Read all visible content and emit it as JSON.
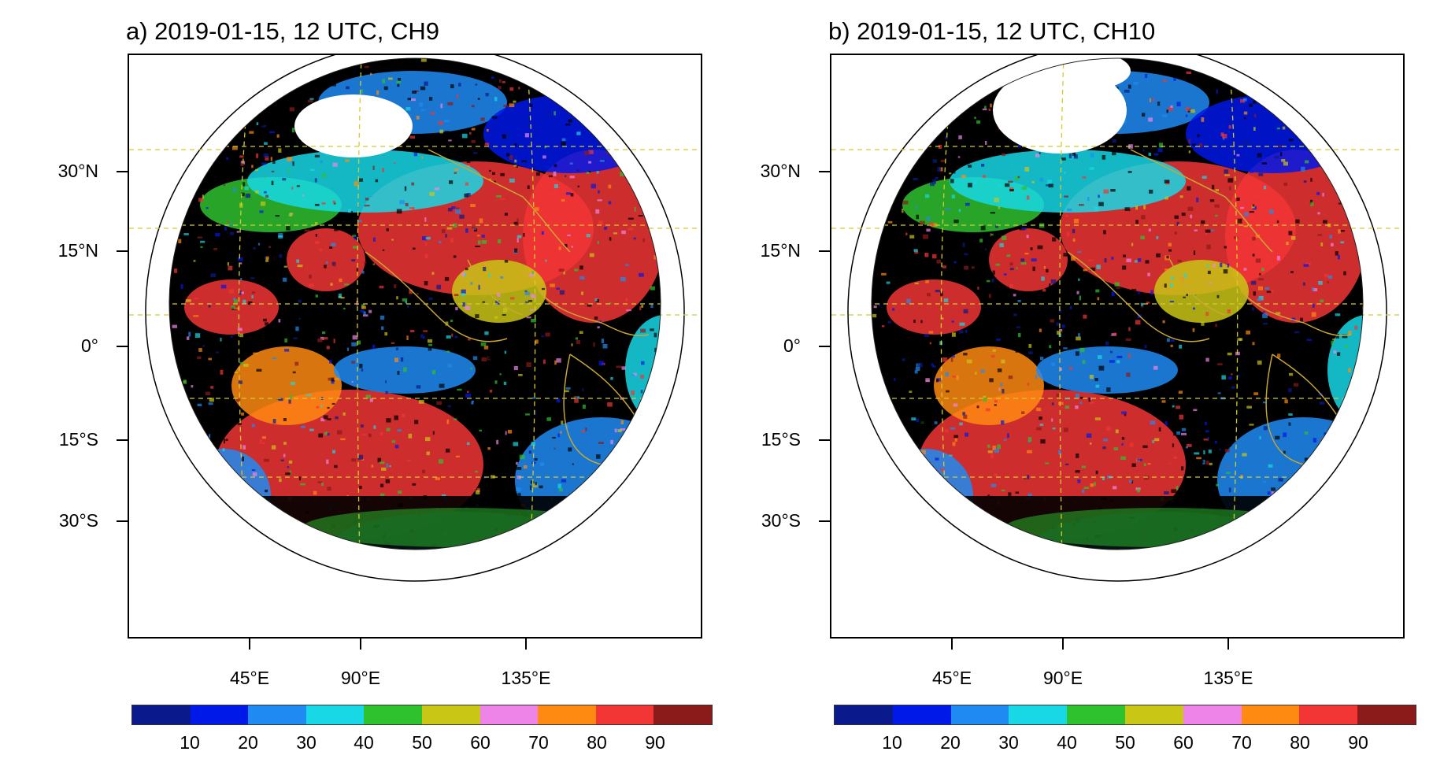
{
  "panels": [
    {
      "title": "a) 2019-01-15, 12 UTC, CH9",
      "lat_labels": [
        "30°N",
        "15°N",
        "0°",
        "15°S",
        "30°S"
      ],
      "lon_labels": [
        "45°E",
        "90°E",
        "135°E"
      ],
      "colorbar_labels": [
        "10",
        "20",
        "30",
        "40",
        "50",
        "60",
        "70",
        "80",
        "90"
      ]
    },
    {
      "title": "b) 2019-01-15, 12 UTC, CH10",
      "lat_labels": [
        "30°N",
        "15°N",
        "0°",
        "15°S",
        "30°S"
      ],
      "lon_labels": [
        "45°E",
        "90°E",
        "135°E"
      ],
      "colorbar_labels": [
        "10",
        "20",
        "30",
        "40",
        "50",
        "60",
        "70",
        "80",
        "90"
      ]
    }
  ],
  "colorbar_colors": [
    "#0a1a8c",
    "#0018e8",
    "#1f8bf2",
    "#18d8e6",
    "#2fc22f",
    "#c9c616",
    "#ee84e8",
    "#ff8a12",
    "#f23535",
    "#8b1a1a"
  ],
  "colors": {
    "space": "#ffffff",
    "clear_sky": "#000000",
    "coastline": "#c8a832",
    "gridline": "#d4cc2a",
    "frame": "#000000"
  }
}
